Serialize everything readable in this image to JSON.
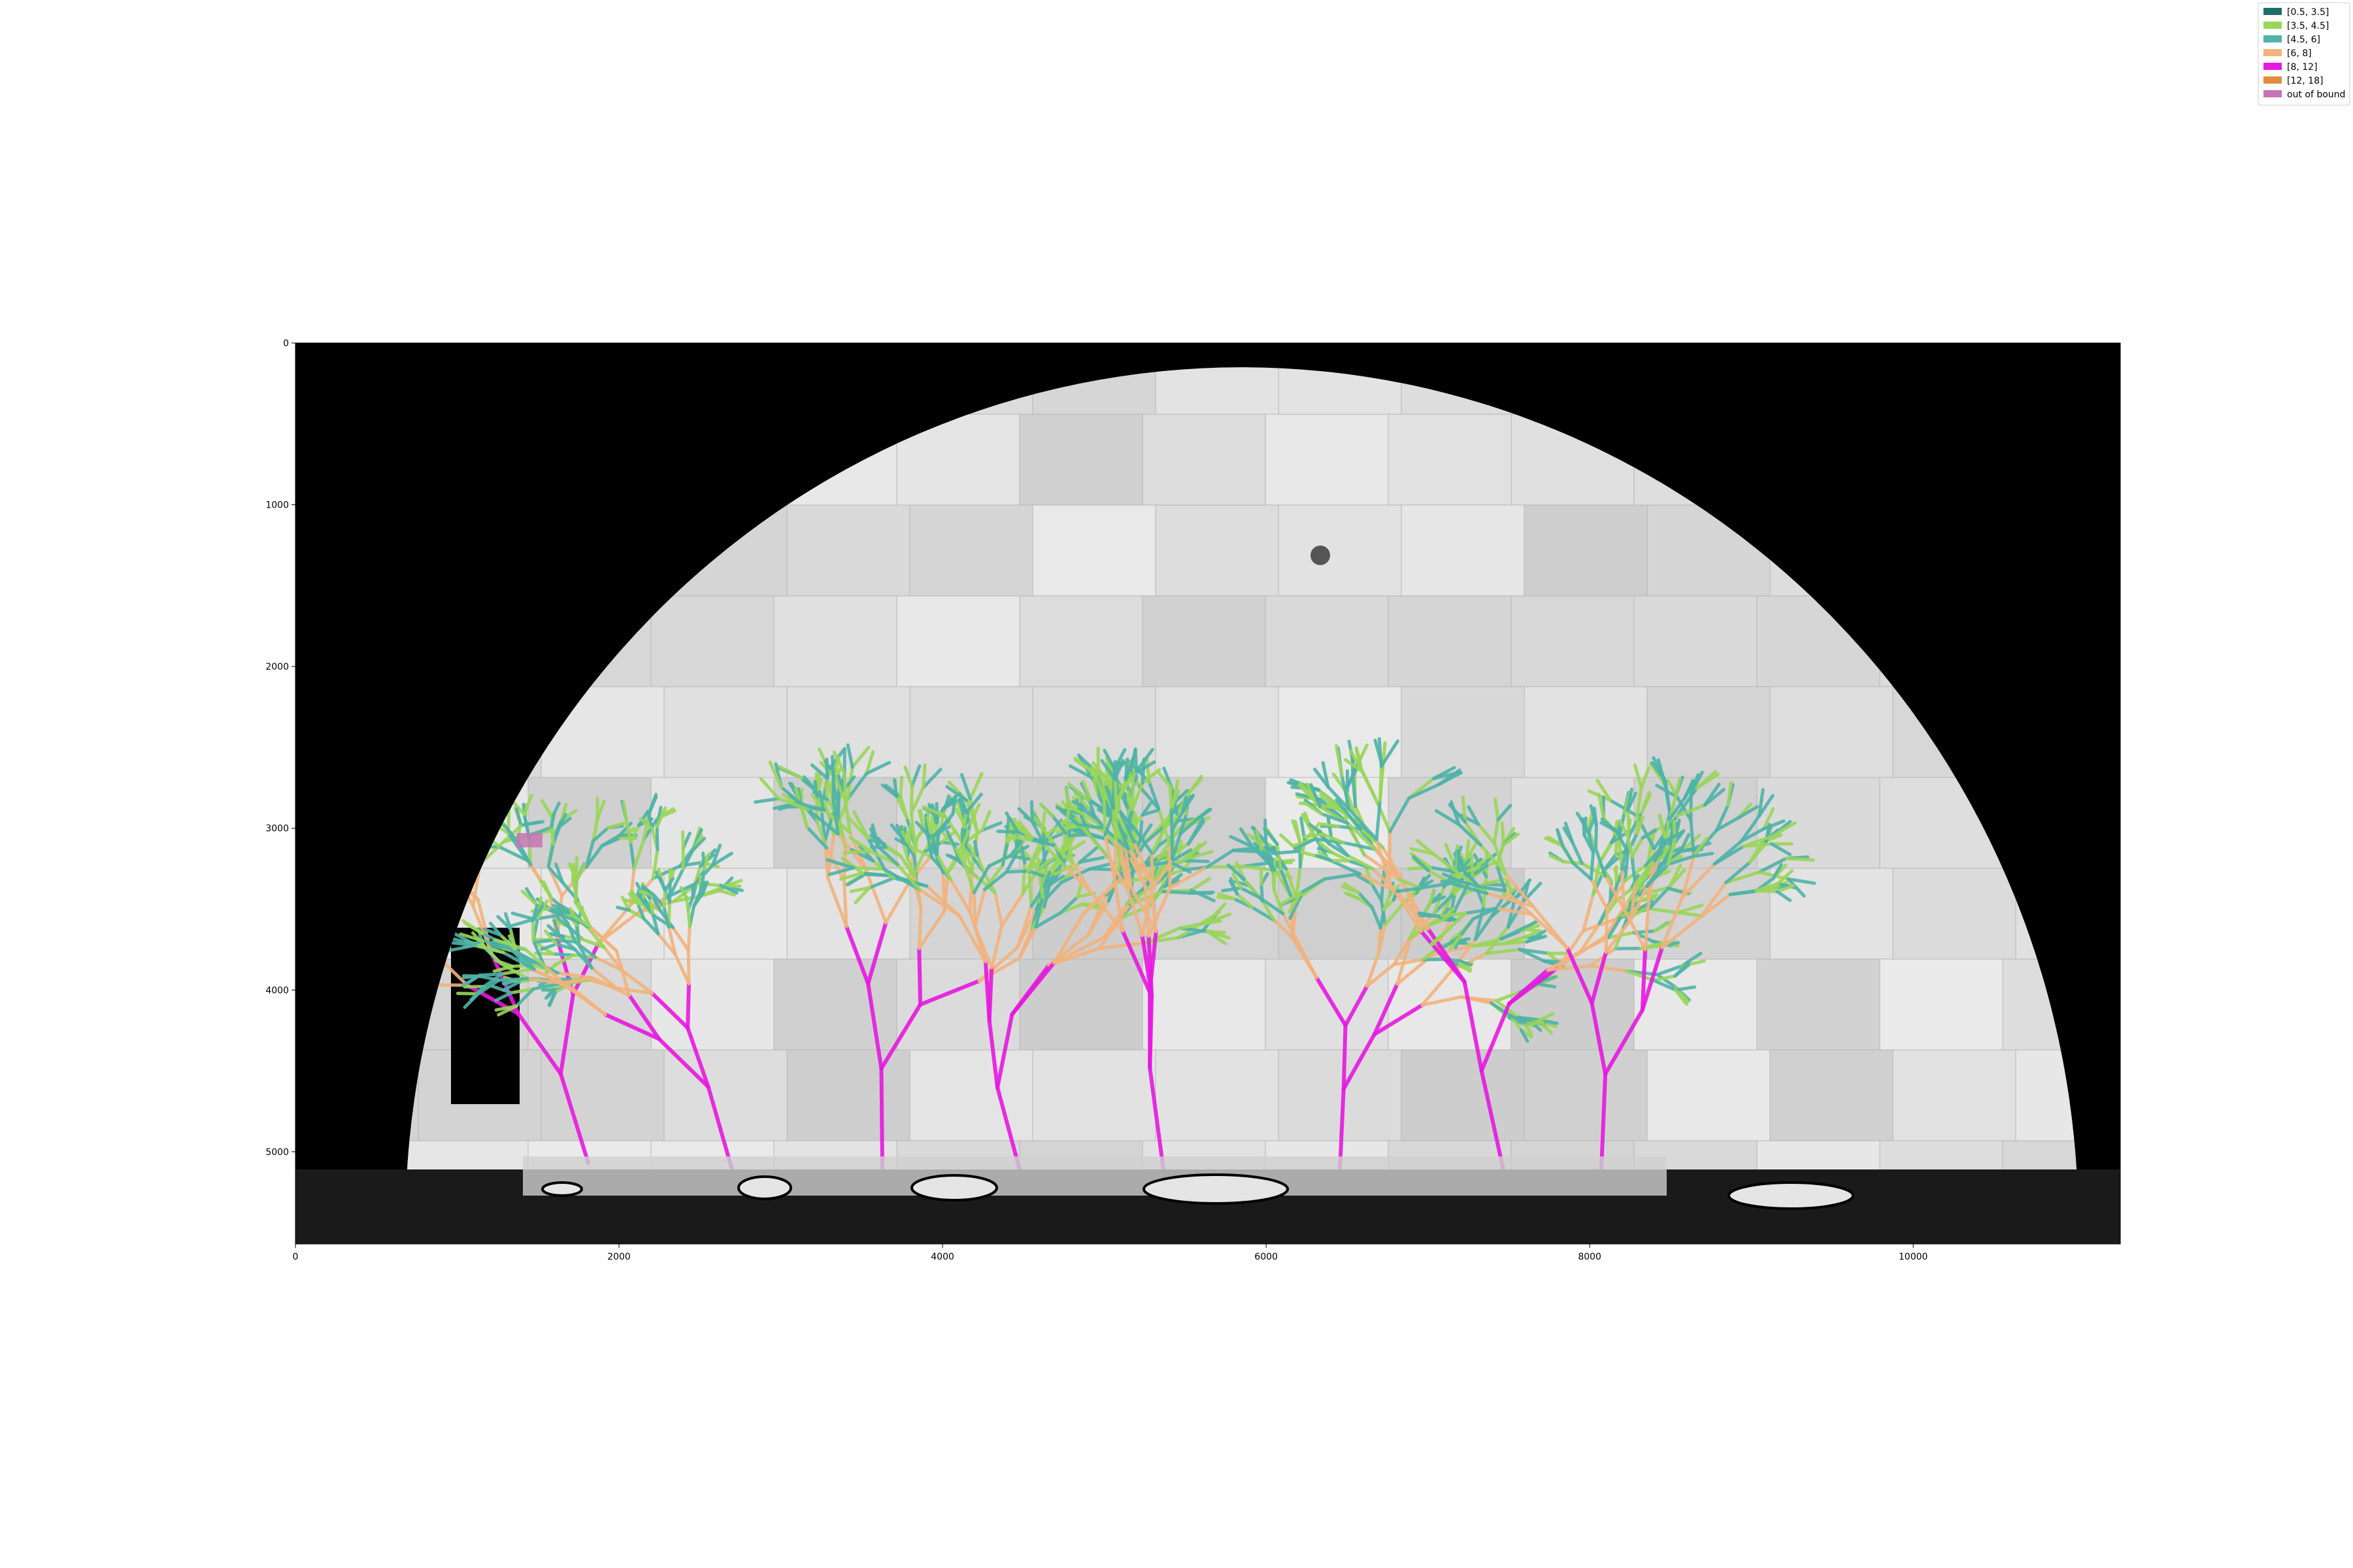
{
  "chart_data": {
    "type": "scatter",
    "title": "",
    "xlabel": "",
    "ylabel": "",
    "xlim": [
      0,
      11280
    ],
    "ylim": [
      5570,
      0
    ],
    "x_ticks": [
      0,
      2000,
      4000,
      6000,
      8000,
      10000
    ],
    "y_ticks": [
      0,
      1000,
      2000,
      3000,
      4000,
      5000
    ],
    "background": "grayscale stitched microscopy mosaic (semicircular dish)",
    "grid": false,
    "legend_position": "top-right",
    "series": [
      {
        "name": "[0.5, 3.5]",
        "color": "#1f6e6a"
      },
      {
        "name": "[3.5, 4.5]",
        "color": "#9ad65a"
      },
      {
        "name": "[4.5, 6]",
        "color": "#4fb3a8"
      },
      {
        "name": "[6, 8]",
        "color": "#f2b37e"
      },
      {
        "name": "[8, 12]",
        "color": "#e619e0"
      },
      {
        "name": "[12, 18]",
        "color": "#e08e3e"
      },
      {
        "name": "out of bound",
        "color": "#c774b5"
      }
    ]
  }
}
